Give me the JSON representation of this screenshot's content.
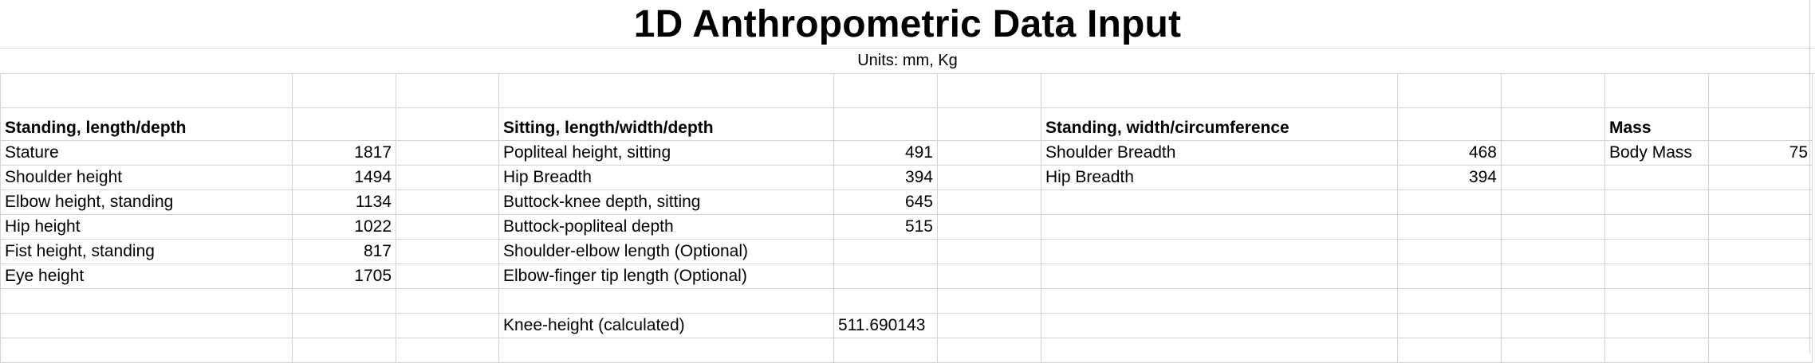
{
  "title": "1D Anthropometric Data Input",
  "units": "Units: mm, Kg",
  "standing_length": {
    "heading": "Standing, length/depth",
    "rows": [
      {
        "label": "Stature",
        "value": "1817"
      },
      {
        "label": "Shoulder height",
        "value": "1494"
      },
      {
        "label": "Elbow height, standing",
        "value": "1134"
      },
      {
        "label": "Hip height",
        "value": "1022"
      },
      {
        "label": "Fist height, standing",
        "value": "817"
      },
      {
        "label": "Eye height",
        "value": "1705"
      }
    ]
  },
  "sitting": {
    "heading": "Sitting, length/width/depth",
    "rows": [
      {
        "label": "Popliteal height, sitting",
        "value": "491"
      },
      {
        "label": "Hip Breadth",
        "value": "394"
      },
      {
        "label": "Buttock-knee depth, sitting",
        "value": "645"
      },
      {
        "label": "Buttock-popliteal depth",
        "value": "515"
      },
      {
        "label": "Shoulder-elbow length (Optional)",
        "value": ""
      },
      {
        "label": "Elbow-finger tip length (Optional)",
        "value": ""
      }
    ],
    "calculated": {
      "label": "Knee-height (calculated)",
      "value": "511.690143"
    }
  },
  "standing_width": {
    "heading": "Standing, width/circumference",
    "rows": [
      {
        "label": "Shoulder Breadth",
        "value": "468"
      },
      {
        "label": "Hip Breadth",
        "value": "394"
      }
    ]
  },
  "mass": {
    "heading": "Mass",
    "rows": [
      {
        "label": "Body Mass",
        "value": "75"
      }
    ]
  }
}
